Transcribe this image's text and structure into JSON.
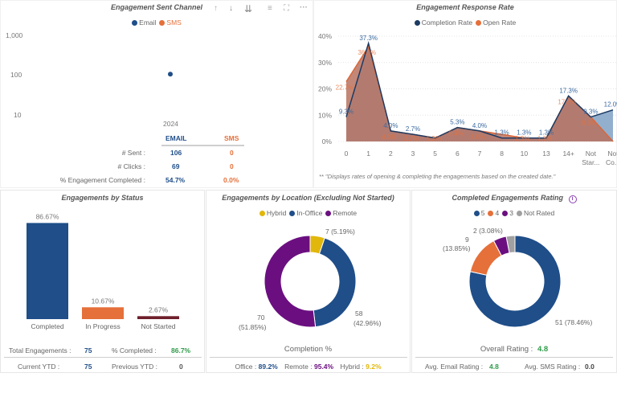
{
  "colors": {
    "navy": "#1f4e89",
    "orange": "#e5703a",
    "purple": "#6b0f80",
    "gold": "#e2b70c",
    "maroon": "#6e1e2a",
    "gray": "#a0a0a0",
    "green": "#2e9a48",
    "completion_line": "#1c3b63",
    "open_fill": "#b9725f",
    "completion_fill": "#7fa1c6"
  },
  "sent_channel": {
    "title": "Engagement Sent Channel",
    "toolbar": {
      "sort_asc": "↑",
      "sort_desc": "↓",
      "expand_all": "⇊",
      "filter": "≡",
      "focus": "⛶",
      "more": "···"
    },
    "legend": [
      "Email",
      "SMS"
    ],
    "y_ticks": [
      "1,000",
      "100",
      "10"
    ],
    "x_label": "2024",
    "table": {
      "headers": [
        "EMAIL",
        "SMS"
      ],
      "rows": [
        {
          "label": "# Sent :",
          "email": "106",
          "sms": "0"
        },
        {
          "label": "# Clicks :",
          "email": "69",
          "sms": "0"
        },
        {
          "label": "% Engagement Completed :",
          "email": "54.7%",
          "sms": "0.0%"
        }
      ]
    }
  },
  "response_rate": {
    "title": "Engagement Response Rate",
    "legend": [
      "Completion Rate",
      "Open Rate"
    ],
    "footnote": "** \"Displays rates of opening & completing the engagements based on the created date.\""
  },
  "by_status": {
    "title": "Engagements by Status",
    "stats": {
      "total_label": "Total Engagements :",
      "total_value": "75",
      "pct_label": "% Completed :",
      "pct_value": "86.7%",
      "current_label": "Current YTD :",
      "current_value": "75",
      "previous_label": "Previous YTD :",
      "previous_value": "0"
    }
  },
  "by_location": {
    "title": "Engagements by Location (Excluding Not Started)",
    "legend": [
      "Hybrid",
      "In-Office",
      "Remote"
    ],
    "labels": {
      "hybrid": "7 (5.19%)",
      "office_1": "58",
      "office_2": "(42.96%)",
      "remote_1": "70",
      "remote_2": "(51.85%)"
    },
    "subtitle": "Completion %",
    "stats": {
      "office_label": "Office :",
      "office_value": "89.2%",
      "remote_label": "Remote :",
      "remote_value": "95.4%",
      "hybrid_label": "Hybrid :",
      "hybrid_value": "9.2%"
    }
  },
  "rating": {
    "title": "Completed Engagements Rating",
    "info_icon": "i",
    "legend": [
      "5",
      "4",
      "3",
      "Not Rated"
    ],
    "labels": {
      "nr": "2 (3.08%)",
      "four_1": "9",
      "four_2": "(13.85%)",
      "five": "51 (78.46%)"
    },
    "stats": {
      "overall_label": "Overall Rating :",
      "overall_value": "4.8",
      "email_label": "Avg. Email Rating :",
      "email_value": "4.8",
      "sms_label": "Avg. SMS Rating :",
      "sms_value": "0.0"
    }
  },
  "chart_data": [
    {
      "type": "scatter",
      "title": "Engagement Sent Channel",
      "yscale": "log",
      "ylim": [
        10,
        1000
      ],
      "y_ticks": [
        1000,
        100,
        10
      ],
      "x": [
        "2024"
      ],
      "series": [
        {
          "name": "Email",
          "values": [
            106
          ]
        },
        {
          "name": "SMS",
          "values": [
            0
          ]
        }
      ],
      "legend": "top-center"
    },
    {
      "type": "area",
      "title": "Engagement Response Rate",
      "categories": [
        "0",
        "1",
        "2",
        "3",
        "5",
        "6",
        "7",
        "8",
        "10",
        "13",
        "14+",
        "Not Star...",
        "Not Co..."
      ],
      "y_ticks": [
        "0%",
        "10%",
        "20%",
        "30%",
        "40%"
      ],
      "ylim": [
        0,
        40
      ],
      "series": [
        {
          "name": "Completion Rate",
          "values": [
            9.3,
            37.3,
            4.0,
            2.7,
            1.3,
            5.3,
            4.0,
            1.3,
            1.3,
            1.3,
            17.3,
            9.3,
            12.0
          ],
          "labels": [
            "9.3%",
            "37.3%",
            "4.0%",
            "2.7%",
            "",
            "5.3%",
            "4.0%",
            "1.3%",
            "1.3%",
            "1.3%",
            "17.3%",
            "9.3%",
            "12.0%"
          ]
        },
        {
          "name": "Open Rate",
          "values": [
            22.7,
            36.0,
            4.0,
            2.7,
            1.3,
            5.3,
            4.0,
            2.7,
            1.3,
            1.3,
            17.3,
            9.3,
            0
          ],
          "labels": [
            "22.7%",
            "36.0%",
            "4.0%",
            "2.7%",
            "1.3%",
            "5.3%",
            "4.0%",
            "",
            "1.3%",
            "1.3%",
            "17.3%",
            "9.3%",
            ""
          ]
        }
      ],
      "legend": "top-center"
    },
    {
      "type": "bar",
      "title": "Engagements by Status",
      "categories": [
        "Completed",
        "In Progress",
        "Not Started"
      ],
      "values": [
        86.67,
        10.67,
        2.67
      ],
      "labels": [
        "86.67%",
        "10.67%",
        "2.67%"
      ],
      "ylim": [
        0,
        100
      ]
    },
    {
      "type": "pie",
      "title": "Engagements by Location (Excluding Not Started)",
      "categories": [
        "Hybrid",
        "In-Office",
        "Remote"
      ],
      "values": [
        7,
        58,
        70
      ],
      "percents": [
        5.19,
        42.96,
        51.85
      ],
      "legend": "top-center"
    },
    {
      "type": "pie",
      "title": "Completed Engagements Rating",
      "categories": [
        "5",
        "4",
        "3",
        "Not Rated"
      ],
      "values": [
        51,
        9,
        3,
        2
      ],
      "percents": [
        78.46,
        13.85,
        4.62,
        3.08
      ],
      "legend": "top-center"
    }
  ]
}
